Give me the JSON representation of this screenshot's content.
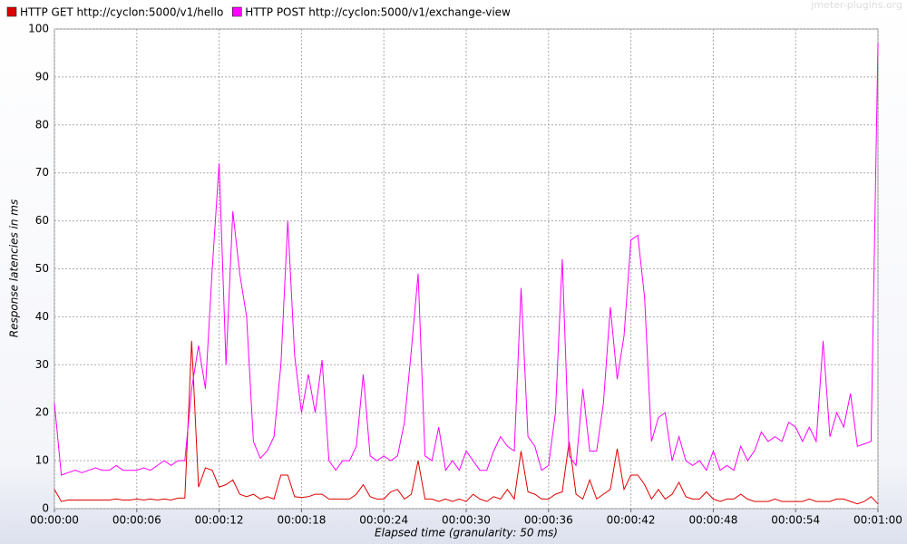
{
  "chart_data": {
    "type": "line",
    "watermark": "jmeter-plugins.org",
    "y_label": "Response latencies in ms",
    "x_label": "Elapsed time (granularity: 50 ms)",
    "x": [
      0,
      0.5,
      1,
      1.5,
      2,
      2.5,
      3,
      3.5,
      4,
      4.5,
      5,
      5.5,
      6,
      6.5,
      7,
      7.5,
      8,
      8.5,
      9,
      9.5,
      10,
      10.5,
      11,
      11.5,
      12,
      12.5,
      13,
      13.5,
      14,
      14.5,
      15,
      15.5,
      16,
      16.5,
      17,
      17.5,
      18,
      18.5,
      19,
      19.5,
      20,
      20.5,
      21,
      21.5,
      22,
      22.5,
      23,
      23.5,
      24,
      24.5,
      25,
      25.5,
      26,
      26.5,
      27,
      27.5,
      28,
      28.5,
      29,
      29.5,
      30,
      30.5,
      31,
      31.5,
      32,
      32.5,
      33,
      33.5,
      34,
      34.5,
      35,
      35.5,
      36,
      36.5,
      37,
      37.5,
      38,
      38.5,
      39,
      39.5,
      40,
      40.5,
      41,
      41.5,
      42,
      42.5,
      43,
      43.5,
      44,
      44.5,
      45,
      45.5,
      46,
      46.5,
      47,
      47.5,
      48,
      48.5,
      49,
      49.5,
      50,
      50.5,
      51,
      51.5,
      52,
      52.5,
      53,
      53.5,
      54,
      54.5,
      55,
      55.5,
      56,
      56.5,
      57,
      57.5,
      58,
      58.5,
      59,
      59.5,
      60
    ],
    "series": [
      {
        "name": "HTTP GET http://cyclon:5000/v1/hello",
        "color": "#e00000",
        "values": [
          4,
          1.5,
          1.8,
          1.8,
          1.8,
          1.8,
          1.8,
          1.8,
          1.8,
          2,
          1.8,
          1.8,
          2,
          1.8,
          2,
          1.8,
          2,
          1.8,
          2.2,
          2.2,
          35,
          4.5,
          8.5,
          8,
          4.5,
          5,
          6,
          3,
          2.5,
          3,
          2,
          2.5,
          2,
          7,
          7,
          2.5,
          2.3,
          2.5,
          3,
          3,
          2,
          2,
          2,
          2,
          3,
          5,
          2.5,
          2,
          2,
          3.5,
          4,
          2,
          3,
          10,
          2,
          2,
          1.5,
          2,
          1.5,
          2,
          1.5,
          3,
          2,
          1.5,
          2.5,
          2,
          4,
          2,
          12,
          3.5,
          3,
          2,
          2,
          3,
          3.5,
          14,
          3,
          2,
          6,
          2,
          3,
          4,
          12.5,
          4,
          7,
          7,
          5,
          2,
          4,
          2,
          3,
          5.5,
          2.5,
          2,
          2,
          3.5,
          2,
          1.5,
          2,
          2,
          3,
          2,
          1.5,
          1.5,
          1.5,
          2,
          1.5,
          1.5,
          1.5,
          1.5,
          2,
          1.5,
          1.5,
          1.5,
          2,
          2,
          1.5,
          1,
          1.5,
          2.5,
          1
        ]
      },
      {
        "name": "HTTP POST http://cyclon:5000/v1/exchange-view",
        "color": "#ff00ff",
        "values": [
          22,
          7,
          7.5,
          8,
          7.5,
          8,
          8.5,
          8,
          8,
          9,
          8,
          8,
          8,
          8.5,
          8,
          9,
          10,
          9,
          10,
          10,
          25,
          34,
          25,
          50,
          72,
          30,
          62,
          49,
          40,
          14,
          10.5,
          12,
          15,
          30,
          60,
          32,
          20,
          28,
          20,
          31,
          10,
          8,
          10,
          10,
          13,
          28,
          11,
          10,
          11,
          10,
          11,
          18,
          33,
          49,
          11,
          10,
          17,
          8,
          10,
          8,
          12,
          10,
          8,
          8,
          12,
          15,
          13,
          12,
          46,
          15,
          13,
          8,
          9,
          20,
          52,
          11,
          9,
          25,
          12,
          12,
          22,
          42,
          27,
          36,
          56,
          57,
          44,
          14,
          19,
          20,
          10,
          15,
          10,
          9,
          10,
          8,
          12,
          8,
          9,
          8,
          13,
          10,
          12,
          16,
          14,
          15,
          14,
          18,
          17,
          14,
          17,
          14,
          35,
          15,
          20,
          17,
          24,
          13,
          13.5,
          14,
          97
        ]
      }
    ],
    "xlim": [
      0,
      60
    ],
    "xticks": [
      {
        "value": 0,
        "label": "00:00:00"
      },
      {
        "value": 6,
        "label": "00:00:06"
      },
      {
        "value": 12,
        "label": "00:00:12"
      },
      {
        "value": 18,
        "label": "00:00:18"
      },
      {
        "value": 24,
        "label": "00:00:24"
      },
      {
        "value": 30,
        "label": "00:00:30"
      },
      {
        "value": 36,
        "label": "00:00:36"
      },
      {
        "value": 42,
        "label": "00:00:42"
      },
      {
        "value": 48,
        "label": "00:00:48"
      },
      {
        "value": 54,
        "label": "00:00:54"
      },
      {
        "value": 60,
        "label": "00:01:00"
      }
    ],
    "ylim": [
      0,
      100
    ],
    "yticks": [
      0,
      10,
      20,
      30,
      40,
      50,
      60,
      70,
      80,
      90,
      100
    ],
    "grid": true
  }
}
